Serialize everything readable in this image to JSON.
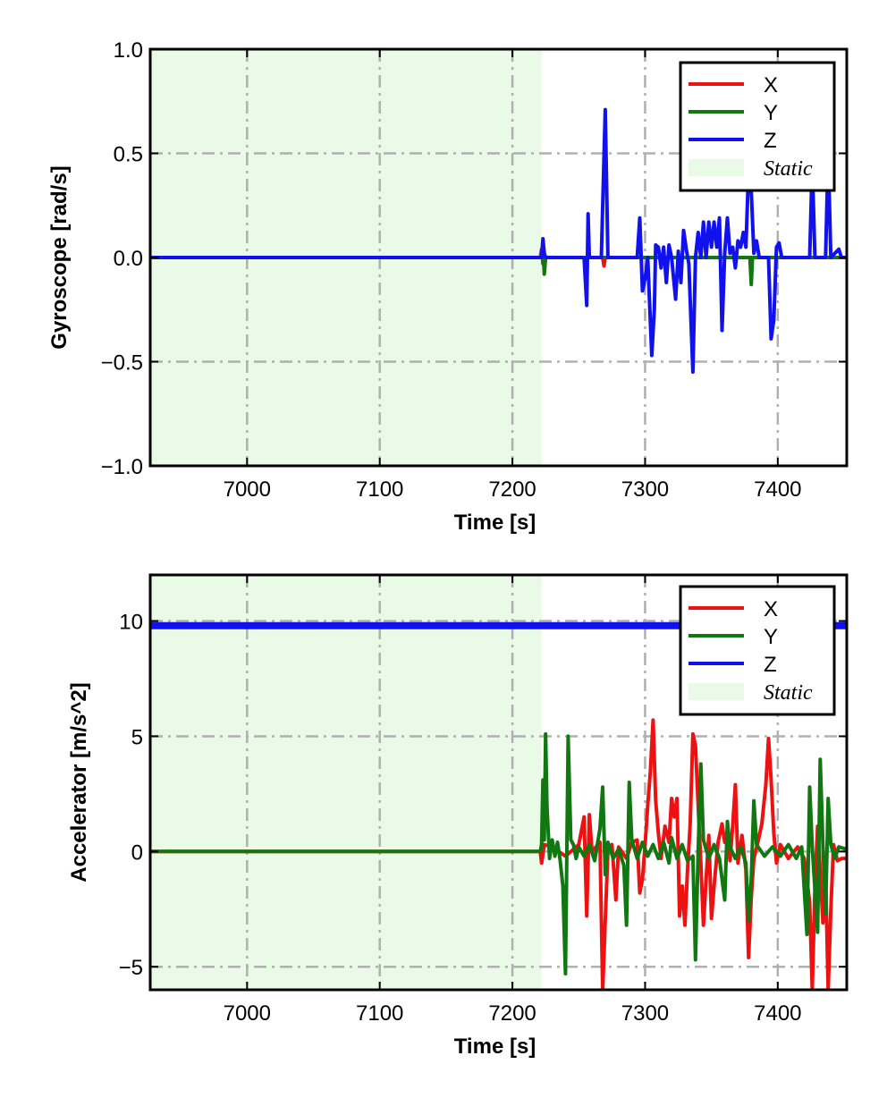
{
  "colors": {
    "x": "#ee1111",
    "y": "#117711",
    "z": "#1111ee",
    "static": "#e9fbe6",
    "grid": "#b0b0b0"
  },
  "chart_data": [
    {
      "type": "line",
      "xlabel": "Time [s]",
      "ylabel": "Gyroscope [rad/s]",
      "xlim": [
        6927,
        7452
      ],
      "ylim": [
        -1.0,
        1.0
      ],
      "xticks": [
        7000,
        7100,
        7200,
        7300,
        7400
      ],
      "xtick_labels": [
        "7000",
        "7100",
        "7200",
        "7300",
        "7400"
      ],
      "yticks": [
        -1.0,
        -0.5,
        0.0,
        0.5,
        1.0
      ],
      "ytick_labels": [
        "−1.0",
        "−0.5",
        "0.0",
        "0.5",
        "1.0"
      ],
      "grid": true,
      "legend_position": "top-right",
      "legend": [
        "X",
        "Y",
        "Z",
        "Static"
      ],
      "static_region": [
        6927,
        7222
      ],
      "series": [
        {
          "name": "X",
          "color": "#ee1111",
          "points": [
            [
              6927,
              0
            ],
            [
              7221,
              0
            ],
            [
              7222,
              0.04
            ],
            [
              7223,
              -0.03
            ],
            [
              7224,
              0
            ],
            [
              7268,
              0
            ],
            [
              7269,
              -0.04
            ],
            [
              7270,
              0
            ],
            [
              7452,
              0
            ]
          ]
        },
        {
          "name": "Y",
          "color": "#117711",
          "points": [
            [
              6927,
              0
            ],
            [
              7222,
              0
            ],
            [
              7223,
              0.05
            ],
            [
              7224,
              -0.08
            ],
            [
              7225,
              0
            ],
            [
              7379,
              0
            ],
            [
              7380,
              -0.13
            ],
            [
              7381,
              0
            ],
            [
              7452,
              0
            ]
          ]
        },
        {
          "name": "Z",
          "color": "#1111ee",
          "points": [
            [
              6927,
              0
            ],
            [
              7222,
              0
            ],
            [
              7223,
              0.09
            ],
            [
              7224,
              0.02
            ],
            [
              7225,
              0
            ],
            [
              7254,
              0
            ],
            [
              7256,
              -0.23
            ],
            [
              7257,
              0.21
            ],
            [
              7258,
              0
            ],
            [
              7267,
              0
            ],
            [
              7270,
              0.71
            ],
            [
              7272,
              0
            ],
            [
              7294,
              0
            ],
            [
              7296,
              0.19
            ],
            [
              7298,
              -0.16
            ],
            [
              7300,
              -0.1
            ],
            [
              7302,
              0
            ],
            [
              7305,
              -0.47
            ],
            [
              7307,
              -0.25
            ],
            [
              7308,
              0.06
            ],
            [
              7310,
              0.05
            ],
            [
              7312,
              -0.05
            ],
            [
              7314,
              0.05
            ],
            [
              7316,
              -0.12
            ],
            [
              7318,
              0.06
            ],
            [
              7320,
              0
            ],
            [
              7323,
              -0.2
            ],
            [
              7325,
              0.03
            ],
            [
              7327,
              -0.12
            ],
            [
              7329,
              0.13
            ],
            [
              7331,
              0.04
            ],
            [
              7333,
              -0.03
            ],
            [
              7336,
              -0.55
            ],
            [
              7338,
              0
            ],
            [
              7340,
              0.12
            ],
            [
              7342,
              0
            ],
            [
              7344,
              0.17
            ],
            [
              7346,
              0
            ],
            [
              7348,
              0.17
            ],
            [
              7350,
              0.05
            ],
            [
              7352,
              0.17
            ],
            [
              7354,
              0.05
            ],
            [
              7356,
              0.19
            ],
            [
              7358,
              -0.35
            ],
            [
              7360,
              0.02
            ],
            [
              7362,
              0.19
            ],
            [
              7364,
              0.02
            ],
            [
              7366,
              0.05
            ],
            [
              7368,
              -0.05
            ],
            [
              7370,
              0.08
            ],
            [
              7372,
              0.05
            ],
            [
              7374,
              0.12
            ],
            [
              7376,
              0.05
            ],
            [
              7378,
              0.42
            ],
            [
              7380,
              0.32
            ],
            [
              7382,
              0.02
            ],
            [
              7384,
              0.08
            ],
            [
              7386,
              0
            ],
            [
              7393,
              0
            ],
            [
              7395,
              -0.39
            ],
            [
              7397,
              -0.3
            ],
            [
              7399,
              0.05
            ],
            [
              7401,
              0.07
            ],
            [
              7403,
              0
            ],
            [
              7424,
              0
            ],
            [
              7426,
              0.45
            ],
            [
              7428,
              0
            ],
            [
              7436,
              0
            ],
            [
              7438,
              0.5
            ],
            [
              7440,
              0
            ],
            [
              7446,
              0.04
            ],
            [
              7448,
              0
            ],
            [
              7452,
              0
            ]
          ]
        }
      ]
    },
    {
      "type": "line",
      "xlabel": "Time [s]",
      "ylabel": "Accelerator [m/s^2]",
      "xlim": [
        6927,
        7452
      ],
      "ylim": [
        -6,
        12
      ],
      "xticks": [
        7000,
        7100,
        7200,
        7300,
        7400
      ],
      "xtick_labels": [
        "7000",
        "7100",
        "7200",
        "7300",
        "7400"
      ],
      "yticks": [
        -5,
        0,
        5,
        10
      ],
      "ytick_labels": [
        "−5",
        "0",
        "5",
        "10"
      ],
      "grid": true,
      "legend_position": "top-right",
      "legend": [
        "X",
        "Y",
        "Z",
        "Static"
      ],
      "static_region": [
        6927,
        7222
      ],
      "series": [
        {
          "name": "X",
          "color": "#ee1111",
          "points": [
            [
              6927,
              0
            ],
            [
              7221,
              0
            ],
            [
              7222,
              -0.5
            ],
            [
              7224,
              0.3
            ],
            [
              7230,
              0.2
            ],
            [
              7240,
              -0.2
            ],
            [
              7250,
              0.3
            ],
            [
              7254,
              1.5
            ],
            [
              7256,
              -2.8
            ],
            [
              7258,
              1.6
            ],
            [
              7260,
              0
            ],
            [
              7266,
              0.4
            ],
            [
              7268,
              -6
            ],
            [
              7270,
              -3
            ],
            [
              7272,
              0
            ],
            [
              7275,
              0.3
            ],
            [
              7278,
              -2.1
            ],
            [
              7280,
              0.2
            ],
            [
              7286,
              -0.3
            ],
            [
              7290,
              0.4
            ],
            [
              7294,
              0.5
            ],
            [
              7296,
              -1.8
            ],
            [
              7298,
              -1.2
            ],
            [
              7300,
              0.3
            ],
            [
              7302,
              2
            ],
            [
              7304,
              3.5
            ],
            [
              7306,
              5.7
            ],
            [
              7308,
              2.2
            ],
            [
              7310,
              0.8
            ],
            [
              7312,
              -0.3
            ],
            [
              7315,
              1.1
            ],
            [
              7318,
              0.4
            ],
            [
              7320,
              2.3
            ],
            [
              7322,
              1.5
            ],
            [
              7324,
              2.3
            ],
            [
              7326,
              -2.8
            ],
            [
              7328,
              -1.5
            ],
            [
              7330,
              -3.2
            ],
            [
              7332,
              -0.8
            ],
            [
              7334,
              1.2
            ],
            [
              7336,
              5.1
            ],
            [
              7338,
              4.6
            ],
            [
              7340,
              2
            ],
            [
              7342,
              -0.5
            ],
            [
              7344,
              -3.2
            ],
            [
              7346,
              -1.2
            ],
            [
              7348,
              0.7
            ],
            [
              7350,
              -2.9
            ],
            [
              7352,
              -1.5
            ],
            [
              7355,
              0.4
            ],
            [
              7358,
              1.2
            ],
            [
              7360,
              0.4
            ],
            [
              7362,
              0.9
            ],
            [
              7364,
              -0.4
            ],
            [
              7366,
              1.1
            ],
            [
              7368,
              2.9
            ],
            [
              7370,
              -0.5
            ],
            [
              7373,
              0.7
            ],
            [
              7376,
              -0.8
            ],
            [
              7378,
              -4.6
            ],
            [
              7380,
              -2
            ],
            [
              7382,
              -0.3
            ],
            [
              7385,
              0.4
            ],
            [
              7388,
              1.2
            ],
            [
              7391,
              2.9
            ],
            [
              7393,
              4.9
            ],
            [
              7395,
              3.1
            ],
            [
              7397,
              0.8
            ],
            [
              7399,
              -0.5
            ],
            [
              7402,
              0.3
            ],
            [
              7408,
              -0.3
            ],
            [
              7415,
              0.2
            ],
            [
              7420,
              -0.3
            ],
            [
              7424,
              -2.2
            ],
            [
              7426,
              -6
            ],
            [
              7428,
              -1.5
            ],
            [
              7430,
              1.1
            ],
            [
              7432,
              -0.8
            ],
            [
              7434,
              -3.1
            ],
            [
              7436,
              -1
            ],
            [
              7438,
              -6
            ],
            [
              7440,
              -2.5
            ],
            [
              7442,
              0.3
            ],
            [
              7445,
              -0.4
            ],
            [
              7448,
              -0.3
            ],
            [
              7452,
              -0.3
            ]
          ]
        },
        {
          "name": "Y",
          "color": "#117711",
          "points": [
            [
              6927,
              0
            ],
            [
              7221,
              0
            ],
            [
              7222,
              0.3
            ],
            [
              7223,
              3.1
            ],
            [
              7224,
              0.5
            ],
            [
              7225,
              5.1
            ],
            [
              7226,
              2
            ],
            [
              7228,
              -0.3
            ],
            [
              7230,
              0.5
            ],
            [
              7232,
              -0.2
            ],
            [
              7234,
              0.4
            ],
            [
              7236,
              -0.4
            ],
            [
              7238,
              -1.5
            ],
            [
              7240,
              -5.3
            ],
            [
              7242,
              5
            ],
            [
              7244,
              0.5
            ],
            [
              7246,
              0.3
            ],
            [
              7248,
              -0.3
            ],
            [
              7250,
              0.2
            ],
            [
              7254,
              -0.2
            ],
            [
              7258,
              0.3
            ],
            [
              7262,
              -0.4
            ],
            [
              7266,
              1
            ],
            [
              7268,
              2.8
            ],
            [
              7270,
              -1
            ],
            [
              7272,
              0.4
            ],
            [
              7276,
              -0.3
            ],
            [
              7280,
              0.1
            ],
            [
              7284,
              -0.6
            ],
            [
              7286,
              -3.2
            ],
            [
              7288,
              3
            ],
            [
              7290,
              0.5
            ],
            [
              7294,
              -0.3
            ],
            [
              7298,
              0.4
            ],
            [
              7302,
              -0.2
            ],
            [
              7306,
              0.3
            ],
            [
              7310,
              -0.3
            ],
            [
              7314,
              0.4
            ],
            [
              7318,
              -0.5
            ],
            [
              7320,
              0.6
            ],
            [
              7324,
              -0.3
            ],
            [
              7328,
              0.3
            ],
            [
              7332,
              -0.4
            ],
            [
              7336,
              -0.2
            ],
            [
              7338,
              -4.7
            ],
            [
              7340,
              0
            ],
            [
              7342,
              3.8
            ],
            [
              7344,
              0.5
            ],
            [
              7348,
              -0.3
            ],
            [
              7352,
              0.3
            ],
            [
              7356,
              -0.3
            ],
            [
              7360,
              -2.1
            ],
            [
              7362,
              1.3
            ],
            [
              7364,
              0.2
            ],
            [
              7368,
              -0.3
            ],
            [
              7372,
              0.2
            ],
            [
              7376,
              -0.5
            ],
            [
              7378,
              -3
            ],
            [
              7380,
              -1.2
            ],
            [
              7382,
              2.2
            ],
            [
              7384,
              0.3
            ],
            [
              7390,
              -0.2
            ],
            [
              7396,
              0.2
            ],
            [
              7402,
              -0.2
            ],
            [
              7408,
              0.3
            ],
            [
              7414,
              -0.3
            ],
            [
              7418,
              0.2
            ],
            [
              7422,
              -3.6
            ],
            [
              7424,
              2.8
            ],
            [
              7426,
              0.2
            ],
            [
              7430,
              -3.5
            ],
            [
              7432,
              4
            ],
            [
              7434,
              0.3
            ],
            [
              7436,
              -2.7
            ],
            [
              7438,
              2.3
            ],
            [
              7440,
              0.3
            ],
            [
              7443,
              -0.3
            ],
            [
              7446,
              0.2
            ],
            [
              7452,
              0.1
            ]
          ]
        },
        {
          "name": "Z",
          "color": "#1111ee",
          "points": [
            [
              6927,
              9.8
            ],
            [
              7452,
              9.8
            ]
          ]
        }
      ]
    }
  ]
}
